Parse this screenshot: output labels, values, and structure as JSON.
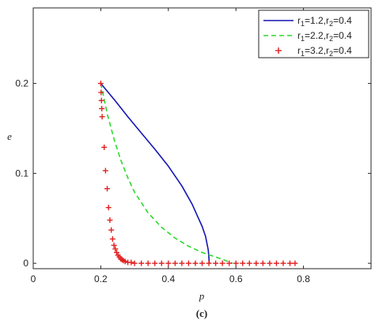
{
  "chart_data": {
    "type": "line",
    "xlabel": "p",
    "ylabel": "e",
    "caption": "(c)",
    "xlim": [
      0,
      1
    ],
    "ylim": [
      -0.006,
      0.284
    ],
    "xticks": [
      0,
      0.2,
      0.4,
      0.6,
      0.8
    ],
    "xtick_labels": [
      "0",
      "0.2",
      "0.4",
      "0.6",
      "0.8"
    ],
    "yticks": [
      0,
      0.1,
      0.2
    ],
    "ytick_labels": [
      "0",
      "0.1",
      "0.2"
    ],
    "grid": false,
    "legend_position": "top-right",
    "series": [
      {
        "name_parts": {
          "r": "r",
          "s1": "1",
          "eq1": "=1.2,",
          "s2": "2",
          "eq2": "=0.4"
        },
        "style": "solid",
        "color": "#1414b4",
        "x": [
          0.2,
          0.24,
          0.28,
          0.32,
          0.36,
          0.4,
          0.44,
          0.47,
          0.5,
          0.51,
          0.518,
          0.52,
          0.521
        ],
        "y": [
          0.2,
          0.182,
          0.163,
          0.145,
          0.127,
          0.108,
          0.086,
          0.066,
          0.041,
          0.03,
          0.015,
          0.007,
          0.0
        ]
      },
      {
        "name_parts": {
          "r": "r",
          "s1": "1",
          "eq1": "=2.2,",
          "s2": "2",
          "eq2": "=0.4"
        },
        "style": "dashed",
        "color": "#2ed82e",
        "x": [
          0.2,
          0.22,
          0.24,
          0.26,
          0.28,
          0.3,
          0.34,
          0.38,
          0.42,
          0.46,
          0.5,
          0.54,
          0.57,
          0.59
        ],
        "y": [
          0.2,
          0.165,
          0.137,
          0.114,
          0.095,
          0.079,
          0.056,
          0.04,
          0.028,
          0.019,
          0.012,
          0.007,
          0.003,
          0.0
        ]
      },
      {
        "name_parts": {
          "r": "r",
          "s1": "1",
          "eq1": "=3.2,",
          "s2": "2",
          "eq2": "=0.4"
        },
        "style": "plus",
        "color": "#e02020",
        "x": [
          0.2,
          0.201,
          0.202,
          0.203,
          0.204,
          0.21,
          0.214,
          0.219,
          0.223,
          0.227,
          0.231,
          0.235,
          0.239,
          0.243,
          0.247,
          0.251,
          0.255,
          0.259,
          0.263,
          0.267,
          0.272,
          0.28,
          0.29,
          0.3,
          0.32,
          0.34,
          0.36,
          0.38,
          0.4,
          0.42,
          0.44,
          0.46,
          0.48,
          0.5,
          0.52,
          0.54,
          0.56,
          0.58,
          0.6,
          0.62,
          0.64,
          0.66,
          0.68,
          0.7,
          0.72,
          0.74,
          0.76,
          0.775
        ],
        "y": [
          0.2,
          0.19,
          0.181,
          0.172,
          0.163,
          0.129,
          0.103,
          0.083,
          0.062,
          0.048,
          0.037,
          0.027,
          0.02,
          0.016,
          0.012,
          0.009,
          0.007,
          0.005,
          0.004,
          0.003,
          0.002,
          0.001,
          0.001,
          0.0,
          0.0,
          0.0,
          0.0,
          0.0,
          0.0,
          0.0,
          0.0,
          0.0,
          0.0,
          0.0,
          0.0,
          0.0,
          0.0,
          0.0,
          0.0,
          0.0,
          0.0,
          0.0,
          0.0,
          0.0,
          0.0,
          0.0,
          0.0,
          0.0
        ]
      }
    ]
  }
}
